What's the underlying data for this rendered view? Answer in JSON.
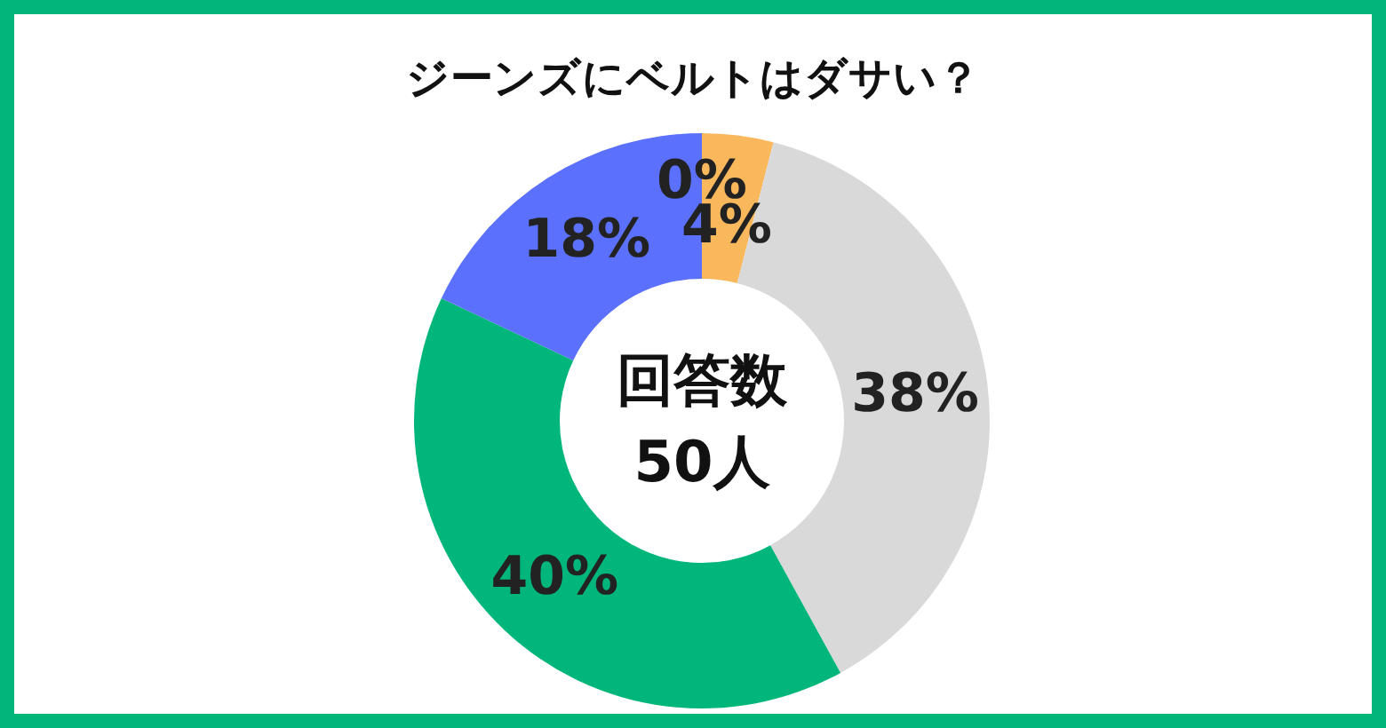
{
  "chart_data": {
    "type": "donut",
    "title": "ジーンズにベルトはダサい？",
    "categories": [
      null,
      null,
      null,
      null,
      null
    ],
    "values": [
      0,
      4,
      38,
      40,
      18
    ],
    "colors": [
      "#ffd966",
      "#f9b85c",
      "#d9d9d9",
      "#00b67a",
      "#5b70fc"
    ],
    "value_labels": [
      "0%",
      "4%",
      "38%",
      "40%",
      "18%"
    ],
    "annotations": [
      "回答数",
      "50人"
    ]
  }
}
